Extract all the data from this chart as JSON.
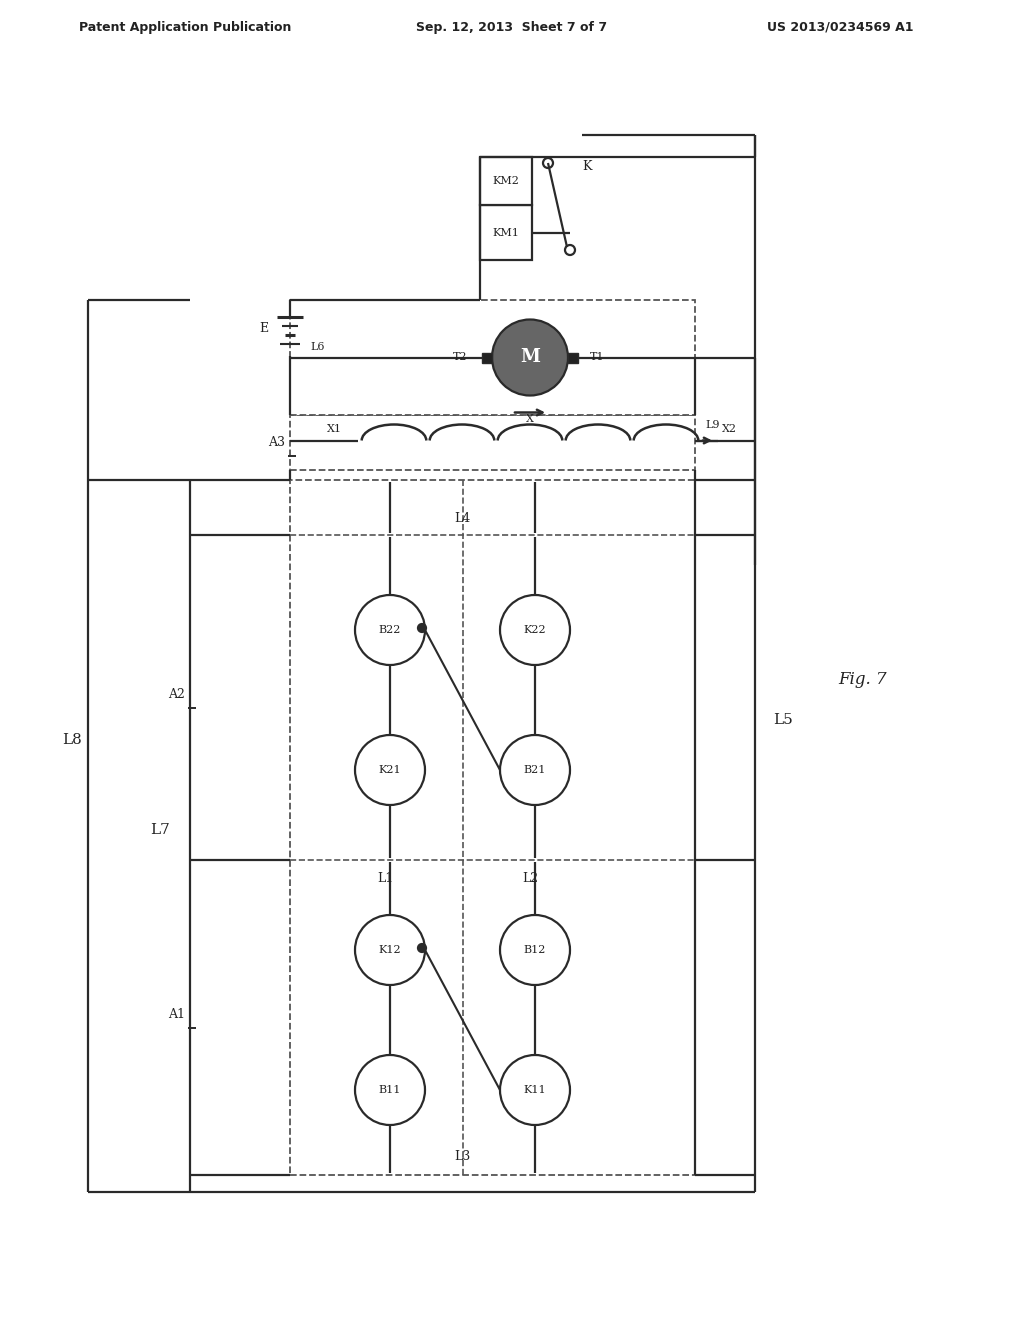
{
  "header_left": "Patent Application Publication",
  "header_mid": "Sep. 12, 2013  Sheet 7 of 7",
  "header_right": "US 2013/0234569 A1",
  "fig_label": "Fig. 7",
  "bg_color": "#ffffff",
  "lc": "#2a2a2a",
  "dc": "#555555"
}
